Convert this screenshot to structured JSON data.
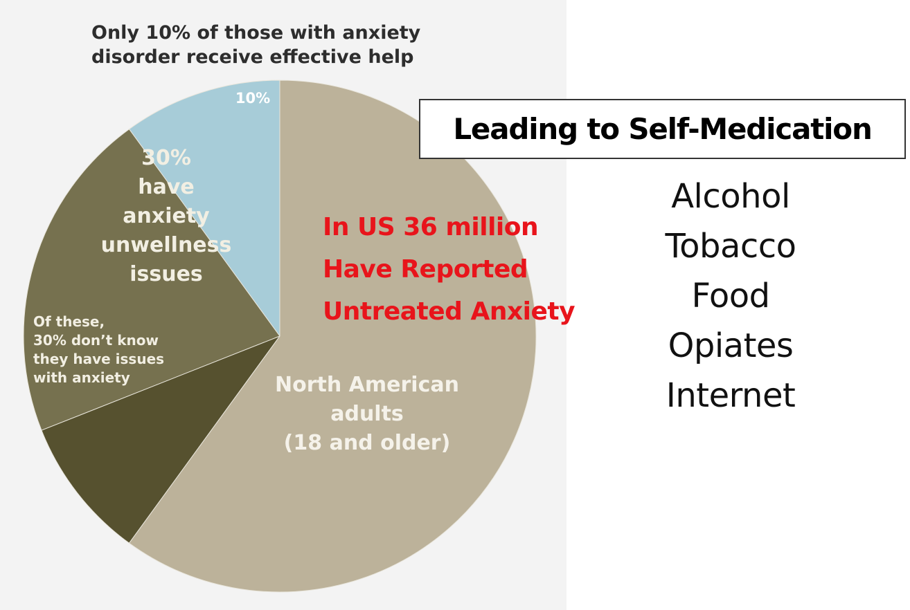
{
  "chart_data": {
    "type": "pie",
    "title": "Only 10% of those with anxiety disorder receive effective help",
    "slices": [
      {
        "label": "10%",
        "value": 10,
        "color": "#a7ccd8"
      },
      {
        "label": "30% have anxiety unwellness issues",
        "value": 21,
        "color": "#76714f"
      },
      {
        "label": "Of these, 30% don’t know they have issues with anxiety",
        "value": 9,
        "color": "#56512f"
      },
      {
        "label": "North American adults (18 and older)",
        "value": 60,
        "color": "#bcb29a"
      }
    ],
    "labels": {
      "ten": "10%",
      "thirty_lines": [
        "30%",
        "have",
        "anxiety",
        "unwellness",
        "issues"
      ],
      "unaware_lines": [
        "Of these,",
        "30% don’t know",
        "they have issues",
        "with anxiety"
      ],
      "adults_lines": [
        "North American",
        "adults",
        "(18 and older)"
      ]
    }
  },
  "title_lines": [
    "Only 10% of those with anxiety",
    "disorder receive effective help"
  ],
  "callout_lines": [
    "In US 36 million",
    "Have Reported",
    "Untreated Anxiety"
  ],
  "headline": "Leading to Self-Medication",
  "self_medication": [
    "Alcohol",
    "Tobacco",
    "Food",
    "Opiates",
    "Internet"
  ]
}
